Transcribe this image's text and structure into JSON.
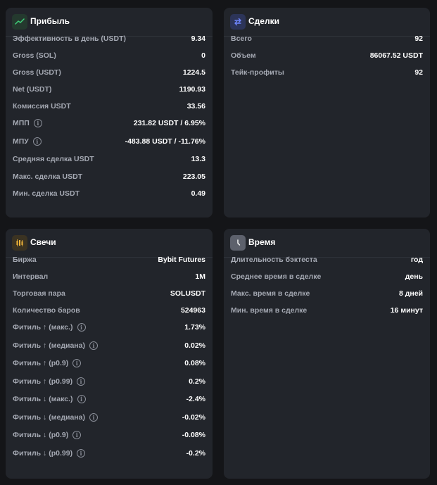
{
  "profit": {
    "title": "Прибыль",
    "icon": "trend-line-icon",
    "icon_bg": "#24392e",
    "rows": [
      {
        "label": "Эффективность в день (USDT)",
        "value": "9.34",
        "info": false
      },
      {
        "label": "Gross (SOL)",
        "value": "0",
        "info": false
      },
      {
        "label": "Gross (USDT)",
        "value": "1224.5",
        "info": false
      },
      {
        "label": "Net (USDT)",
        "value": "1190.93",
        "info": false
      },
      {
        "label": "Комиссия USDT",
        "value": "33.56",
        "info": false
      },
      {
        "label": "МПП",
        "value": "231.82 USDT / 6.95%",
        "info": true
      },
      {
        "label": "МПУ",
        "value": "-483.88 USDT / -11.76%",
        "info": true
      },
      {
        "label": "Средняя сделка USDT",
        "value": "13.3",
        "info": false
      },
      {
        "label": "Макс. сделка USDT",
        "value": "223.05",
        "info": false
      },
      {
        "label": "Мин. сделка USDT",
        "value": "0.49",
        "info": false
      }
    ]
  },
  "trades": {
    "title": "Сделки",
    "icon": "swap-arrows-icon",
    "icon_bg": "#2c3458",
    "rows": [
      {
        "label": "Всего",
        "value": "92",
        "info": false
      },
      {
        "label": "Объем",
        "value": "86067.52 USDT",
        "info": false
      },
      {
        "label": "Тейк-профиты",
        "value": "92",
        "info": false
      }
    ]
  },
  "candles": {
    "title": "Свечи",
    "icon": "candlestick-icon",
    "icon_bg": "#3b3322",
    "rows": [
      {
        "label": "Биржа",
        "value": "Bybit Futures",
        "info": false
      },
      {
        "label": "Интервал",
        "value": "1M",
        "info": false
      },
      {
        "label": "Торговая пара",
        "value": "SOLUSDT",
        "info": false
      },
      {
        "label": "Количество баров",
        "value": "524963",
        "info": false
      },
      {
        "label": "Фитиль ↑ (макс.)",
        "value": "1.73%",
        "info": true
      },
      {
        "label": "Фитиль ↑ (медиана)",
        "value": "0.02%",
        "info": true
      },
      {
        "label": "Фитиль ↑ (p0.9)",
        "value": "0.08%",
        "info": true
      },
      {
        "label": "Фитиль ↑ (p0.99)",
        "value": "0.2%",
        "info": true
      },
      {
        "label": "Фитиль ↓ (макс.)",
        "value": "-2.4%",
        "info": true
      },
      {
        "label": "Фитиль ↓ (медиана)",
        "value": "-0.02%",
        "info": true
      },
      {
        "label": "Фитиль ↓ (p0.9)",
        "value": "-0.08%",
        "info": true
      },
      {
        "label": "Фитиль ↓ (p0.99)",
        "value": "-0.2%",
        "info": true
      }
    ]
  },
  "time": {
    "title": "Время",
    "icon": "clock-icon",
    "icon_bg": "#5d616c",
    "rows": [
      {
        "label": "Длительность бэктеста",
        "value": "год",
        "info": false
      },
      {
        "label": "Среднее время в сделке",
        "value": "день",
        "info": false
      },
      {
        "label": "Макс. время в сделке",
        "value": "8 дней",
        "info": false
      },
      {
        "label": "Мин. время в сделке",
        "value": "16 минут",
        "info": false
      }
    ]
  },
  "info_icon_glyph": "i"
}
